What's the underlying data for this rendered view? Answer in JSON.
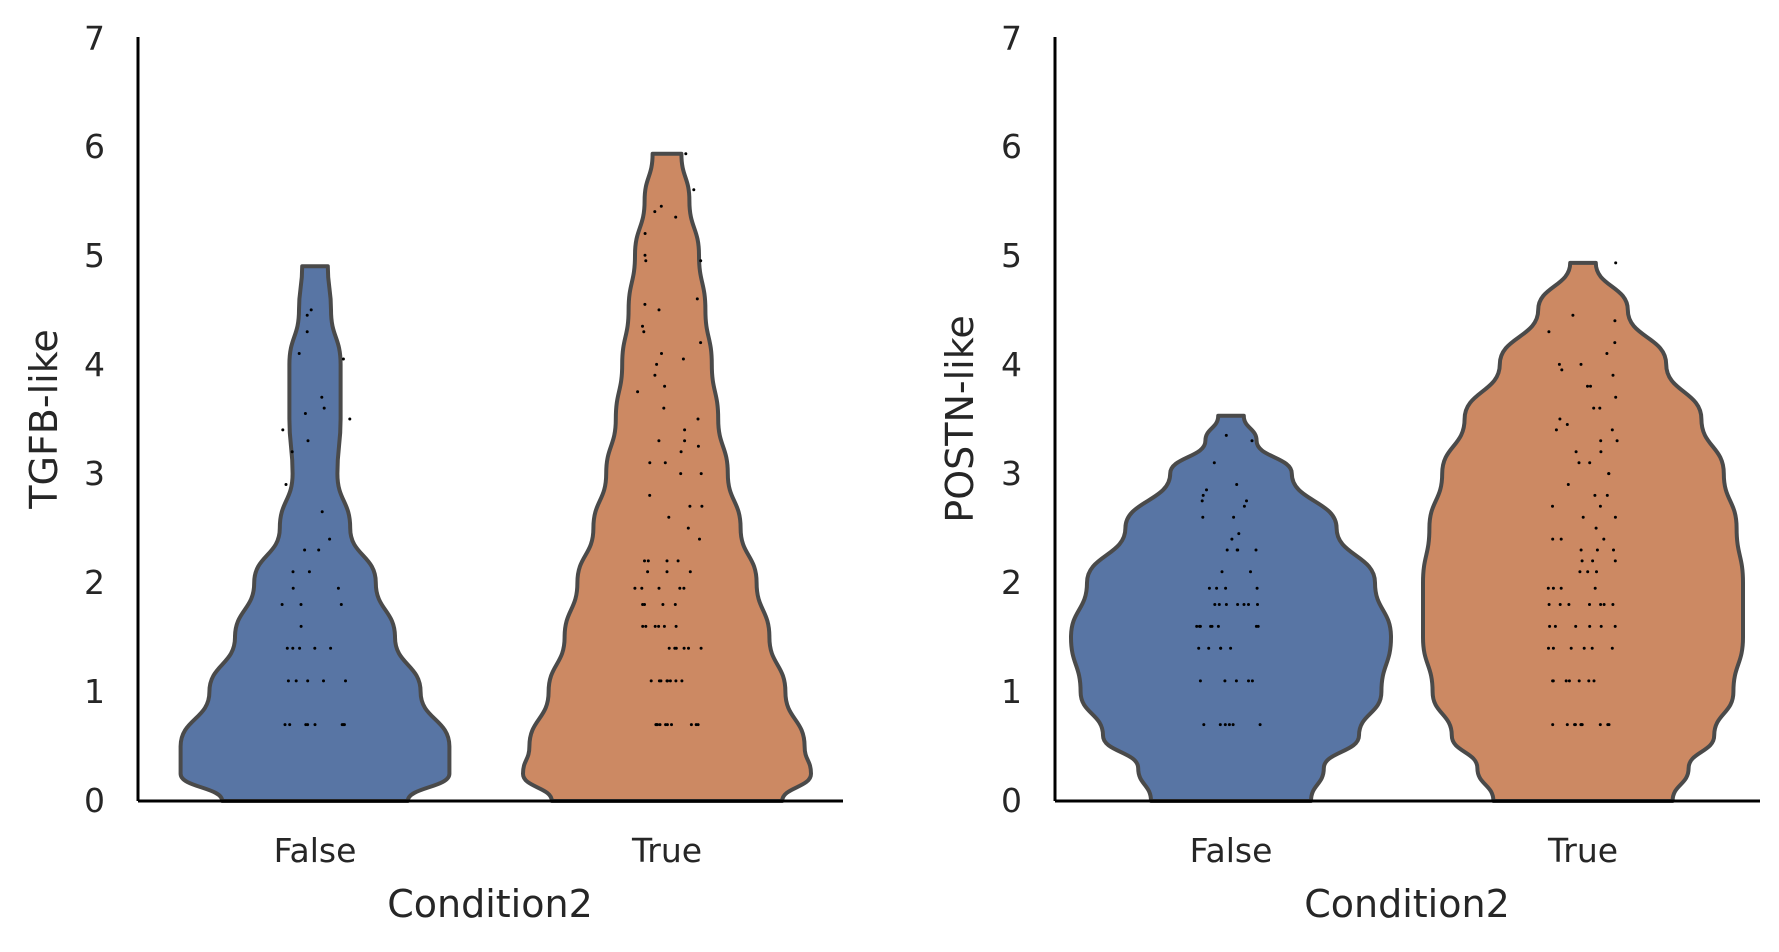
{
  "chart_data": [
    {
      "type": "violin",
      "xlabel": "Condition2",
      "ylabel": "TGFB-like",
      "ylim": [
        0,
        7
      ],
      "yticks": [
        "0",
        "1",
        "2",
        "3",
        "4",
        "5",
        "6",
        "7"
      ],
      "categories": [
        "False",
        "True"
      ],
      "grid": false,
      "legend": "none",
      "series": [
        {
          "category": "False",
          "color": "#5875a4",
          "max": 4.9,
          "density": [
            [
              0.0,
              0.58
            ],
            [
              0.25,
              0.84
            ],
            [
              0.5,
              0.84
            ],
            [
              1.0,
              0.66
            ],
            [
              1.5,
              0.5
            ],
            [
              2.0,
              0.38
            ],
            [
              2.5,
              0.22
            ],
            [
              3.0,
              0.14
            ],
            [
              3.5,
              0.16
            ],
            [
              4.0,
              0.16
            ],
            [
              4.5,
              0.1
            ],
            [
              4.9,
              0.08
            ]
          ],
          "points": [
            0.7,
            0.7,
            0.7,
            0.7,
            0.7,
            0.7,
            0.7,
            0.7,
            1.1,
            1.1,
            1.1,
            1.1,
            1.1,
            1.4,
            1.4,
            1.4,
            1.4,
            1.4,
            1.6,
            1.8,
            1.8,
            1.8,
            1.95,
            1.95,
            2.1,
            2.1,
            2.3,
            2.3,
            2.4,
            2.65,
            2.9,
            3.2,
            3.3,
            3.4,
            3.5,
            3.55,
            3.6,
            3.7,
            4.05,
            4.1,
            4.3,
            4.5,
            4.45
          ]
        },
        {
          "category": "True",
          "color": "#cc8963",
          "max": 5.93,
          "density": [
            [
              0.0,
              0.72
            ],
            [
              0.25,
              0.9
            ],
            [
              0.5,
              0.86
            ],
            [
              1.0,
              0.74
            ],
            [
              1.5,
              0.64
            ],
            [
              2.0,
              0.56
            ],
            [
              2.5,
              0.46
            ],
            [
              3.0,
              0.38
            ],
            [
              3.5,
              0.32
            ],
            [
              4.0,
              0.28
            ],
            [
              4.5,
              0.24
            ],
            [
              5.0,
              0.2
            ],
            [
              5.5,
              0.14
            ],
            [
              5.93,
              0.09
            ]
          ],
          "points": [
            0.7,
            0.7,
            0.7,
            0.7,
            0.7,
            0.7,
            0.7,
            0.7,
            0.7,
            0.7,
            1.1,
            1.1,
            1.1,
            1.1,
            1.1,
            1.1,
            1.1,
            1.1,
            1.4,
            1.4,
            1.4,
            1.4,
            1.4,
            1.4,
            1.6,
            1.6,
            1.6,
            1.6,
            1.6,
            1.6,
            1.8,
            1.8,
            1.8,
            1.8,
            1.95,
            1.95,
            1.95,
            1.95,
            1.95,
            2.1,
            2.1,
            2.1,
            2.2,
            2.2,
            2.2,
            2.2,
            2.4,
            2.5,
            2.6,
            2.7,
            2.7,
            2.8,
            3.0,
            3.0,
            3.1,
            3.1,
            3.2,
            3.25,
            3.3,
            3.3,
            3.4,
            3.5,
            3.6,
            3.75,
            3.8,
            3.9,
            4.0,
            4.05,
            4.1,
            4.2,
            4.3,
            4.35,
            4.5,
            4.55,
            4.6,
            4.95,
            4.95,
            5.0,
            5.2,
            5.35,
            5.4,
            5.45,
            5.6,
            5.93
          ]
        }
      ]
    },
    {
      "type": "violin",
      "xlabel": "Condition2",
      "ylabel": "POSTN-like",
      "ylim": [
        0,
        7
      ],
      "yticks": [
        "0",
        "1",
        "2",
        "3",
        "4",
        "5",
        "6",
        "7"
      ],
      "categories": [
        "False",
        "True"
      ],
      "grid": false,
      "legend": "none",
      "series": [
        {
          "category": "False",
          "color": "#5875a4",
          "max": 3.53,
          "density": [
            [
              0.0,
              0.5
            ],
            [
              0.3,
              0.58
            ],
            [
              0.6,
              0.8
            ],
            [
              1.0,
              0.94
            ],
            [
              1.5,
              1.0
            ],
            [
              2.0,
              0.9
            ],
            [
              2.5,
              0.66
            ],
            [
              3.0,
              0.38
            ],
            [
              3.3,
              0.16
            ],
            [
              3.53,
              0.08
            ]
          ],
          "points": [
            0.7,
            0.7,
            0.7,
            0.7,
            0.7,
            0.7,
            1.1,
            1.1,
            1.1,
            1.1,
            1.1,
            1.4,
            1.4,
            1.4,
            1.4,
            1.4,
            1.6,
            1.6,
            1.6,
            1.6,
            1.6,
            1.6,
            1.6,
            1.6,
            1.8,
            1.8,
            1.8,
            1.8,
            1.8,
            1.8,
            1.8,
            1.95,
            1.95,
            1.95,
            1.95,
            2.1,
            2.1,
            2.3,
            2.3,
            2.3,
            2.3,
            2.4,
            2.45,
            2.6,
            2.6,
            2.7,
            2.75,
            2.75,
            2.8,
            2.85,
            2.9,
            3.1,
            3.3,
            3.35
          ]
        },
        {
          "category": "True",
          "color": "#cc8963",
          "max": 4.93,
          "density": [
            [
              0.0,
              0.56
            ],
            [
              0.3,
              0.66
            ],
            [
              0.6,
              0.82
            ],
            [
              1.0,
              0.94
            ],
            [
              1.5,
              1.0
            ],
            [
              2.0,
              1.0
            ],
            [
              2.5,
              0.96
            ],
            [
              3.0,
              0.88
            ],
            [
              3.5,
              0.74
            ],
            [
              4.0,
              0.52
            ],
            [
              4.5,
              0.28
            ],
            [
              4.93,
              0.08
            ]
          ],
          "points": [
            0.7,
            0.7,
            0.7,
            0.7,
            0.7,
            0.7,
            0.7,
            0.7,
            0.7,
            0.7,
            1.1,
            1.1,
            1.1,
            1.1,
            1.1,
            1.1,
            1.1,
            1.4,
            1.4,
            1.4,
            1.4,
            1.4,
            1.4,
            1.6,
            1.6,
            1.6,
            1.6,
            1.6,
            1.6,
            1.8,
            1.8,
            1.8,
            1.8,
            1.8,
            1.8,
            1.8,
            1.95,
            1.95,
            1.95,
            1.95,
            2.1,
            2.1,
            2.1,
            2.2,
            2.2,
            2.2,
            2.3,
            2.3,
            2.3,
            2.4,
            2.4,
            2.4,
            2.5,
            2.6,
            2.6,
            2.7,
            2.7,
            2.8,
            2.8,
            2.9,
            3.0,
            3.0,
            3.1,
            3.1,
            3.2,
            3.2,
            3.3,
            3.3,
            3.4,
            3.4,
            3.45,
            3.5,
            3.6,
            3.6,
            3.7,
            3.8,
            3.8,
            3.9,
            3.95,
            4.0,
            4.0,
            4.1,
            4.2,
            4.3,
            4.4,
            4.45,
            4.93
          ]
        }
      ]
    }
  ]
}
